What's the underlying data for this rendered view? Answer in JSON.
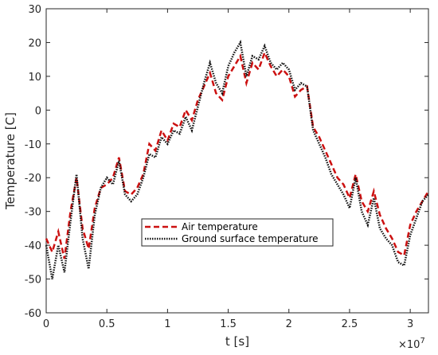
{
  "chart_data": {
    "type": "line",
    "xlabel": "t [s]",
    "ylabel": "Temperature [C]",
    "x_exponent_label": "×10",
    "x_exponent_power": "7",
    "xlim": [
      0,
      3.15
    ],
    "ylim": [
      -60,
      30
    ],
    "x_scale_factor": 10000000,
    "xticks": [
      "0",
      "0.5",
      "1",
      "1.5",
      "2",
      "2.5",
      "3"
    ],
    "yticks": [
      "-60",
      "-50",
      "-40",
      "-30",
      "-20",
      "-10",
      "0",
      "10",
      "20",
      "30"
    ],
    "grid": false,
    "legend_position": "lower-center",
    "x": [
      0,
      0.05,
      0.1,
      0.15,
      0.2,
      0.25,
      0.3,
      0.35,
      0.4,
      0.45,
      0.5,
      0.55,
      0.6,
      0.65,
      0.7,
      0.75,
      0.8,
      0.85,
      0.9,
      0.95,
      1.0,
      1.05,
      1.1,
      1.15,
      1.2,
      1.25,
      1.3,
      1.35,
      1.4,
      1.45,
      1.5,
      1.55,
      1.6,
      1.65,
      1.7,
      1.75,
      1.8,
      1.85,
      1.9,
      1.95,
      2.0,
      2.05,
      2.1,
      2.15,
      2.2,
      2.25,
      2.3,
      2.35,
      2.4,
      2.45,
      2.5,
      2.55,
      2.6,
      2.65,
      2.7,
      2.75,
      2.8,
      2.85,
      2.9,
      2.95,
      3.0,
      3.05,
      3.1,
      3.15
    ],
    "series": [
      {
        "name": "Air temperature",
        "color": "#cc1111",
        "style": "dashed",
        "values": [
          -38,
          -42,
          -36,
          -44,
          -30,
          -20,
          -35,
          -41,
          -29,
          -23,
          -22,
          -20,
          -14,
          -24,
          -25,
          -23,
          -19,
          -10,
          -12,
          -6,
          -9,
          -4,
          -5,
          0,
          -3,
          3,
          7,
          11,
          5,
          3,
          10,
          13,
          16,
          8,
          14,
          12,
          17,
          13,
          10,
          12,
          10,
          4,
          6,
          7,
          -5,
          -8,
          -12,
          -16,
          -20,
          -22,
          -26,
          -19,
          -27,
          -30,
          -24,
          -31,
          -35,
          -38,
          -42,
          -43,
          -34,
          -30,
          -27,
          -24
        ]
      },
      {
        "name": "Ground surface temperature",
        "color": "#111111",
        "style": "dotted",
        "values": [
          -40,
          -50,
          -40,
          -48,
          -33,
          -19,
          -38,
          -47,
          -31,
          -23,
          -20,
          -22,
          -15,
          -25,
          -27,
          -25,
          -20,
          -13,
          -14,
          -8,
          -10,
          -6,
          -7,
          -2,
          -6,
          1,
          8,
          14,
          8,
          5,
          13,
          17,
          20,
          10,
          16,
          15,
          19,
          14,
          12,
          14,
          12,
          6,
          8,
          7,
          -6,
          -10,
          -14,
          -19,
          -22,
          -25,
          -29,
          -20,
          -30,
          -34,
          -26,
          -35,
          -38,
          -40,
          -45,
          -46,
          -37,
          -32,
          -27,
          -25
        ]
      }
    ]
  }
}
